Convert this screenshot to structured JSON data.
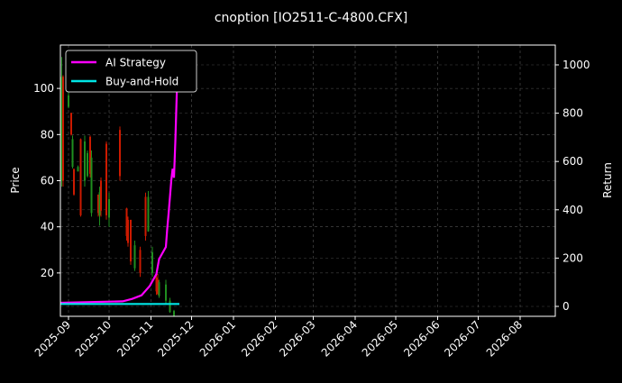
{
  "chart_data": {
    "type": "candlestick+line",
    "title": "cnoption [IO2511-C-4800.CFX]",
    "ylabel_left": "Price",
    "ylabel_right": "Return",
    "xlim": [
      "2025-08-26",
      "2026-08-27"
    ],
    "ylim_left": [
      1.2,
      118.8
    ],
    "ylim_right": [
      -41,
      1082
    ],
    "x_ticks": [
      "2025-09",
      "2025-10",
      "2025-11",
      "2025-12",
      "2026-01",
      "2026-02",
      "2026-03",
      "2026-04",
      "2026-05",
      "2026-06",
      "2026-07",
      "2026-08"
    ],
    "y_ticks_left": [
      20,
      40,
      60,
      80,
      100
    ],
    "y_ticks_right": [
      0,
      200,
      400,
      600,
      800,
      1000
    ],
    "grid": true,
    "legend_placement": "upper-left",
    "colors": {
      "up": "#1f8f1f",
      "down": "#cc1a00",
      "strategy": "#ff00ff",
      "buyhold": "#00e5e5",
      "background": "#000000",
      "grid": "#555555"
    },
    "candles": [
      [
        "2025-08-27",
        60,
        113.6,
        57.4,
        105
      ],
      [
        "2025-08-28",
        105,
        105.7,
        57.4,
        60
      ],
      [
        "2025-09-01",
        92,
        99.2,
        91.4,
        97
      ],
      [
        "2025-09-03",
        89.4,
        89.4,
        79.6,
        80
      ],
      [
        "2025-09-04",
        66,
        79.6,
        65.3,
        78
      ],
      [
        "2025-09-05",
        65,
        65.3,
        53.5,
        54
      ],
      [
        "2025-09-08",
        64,
        66.6,
        64,
        66
      ],
      [
        "2025-09-10",
        78,
        78.3,
        44.4,
        45
      ],
      [
        "2025-09-13",
        60,
        79.6,
        57.4,
        77
      ],
      [
        "2025-09-15",
        62,
        73.1,
        61.4,
        72
      ],
      [
        "2025-09-17",
        79,
        79.6,
        61.4,
        63
      ],
      [
        "2025-09-18",
        46,
        73.1,
        44.4,
        70
      ],
      [
        "2025-09-23",
        54,
        53.5,
        44.4,
        46
      ],
      [
        "2025-09-24",
        45,
        57.4,
        40.5,
        55
      ],
      [
        "2025-09-25",
        60,
        61.4,
        44.4,
        47
      ],
      [
        "2025-09-29",
        76,
        77,
        43.1,
        45
      ],
      [
        "2025-10-01",
        44,
        54.8,
        40,
        52
      ],
      [
        "2025-10-09",
        82,
        83.5,
        60,
        62
      ],
      [
        "2025-10-14",
        48,
        48.3,
        34,
        36
      ],
      [
        "2025-10-15",
        43,
        44.4,
        31.4,
        33
      ],
      [
        "2025-10-17",
        43,
        43.1,
        23.5,
        25
      ],
      [
        "2025-10-20",
        22,
        34,
        20.9,
        32
      ],
      [
        "2025-10-24",
        30,
        31.4,
        18.3,
        20
      ],
      [
        "2025-10-28",
        53,
        54.8,
        34,
        36
      ],
      [
        "2025-10-30",
        38,
        55.5,
        37.9,
        53
      ],
      [
        "2025-11-02",
        20,
        31.4,
        18.3,
        29
      ],
      [
        "2025-11-05",
        18,
        19.6,
        10.5,
        12
      ],
      [
        "2025-11-06",
        17,
        19.6,
        10.5,
        11
      ],
      [
        "2025-11-07",
        10,
        17,
        9.2,
        16
      ],
      [
        "2025-11-12",
        8,
        17,
        6.6,
        15
      ],
      [
        "2025-11-15",
        3,
        9.2,
        2.7,
        8
      ],
      [
        "2025-11-18",
        1.4,
        4,
        1.4,
        3.5
      ]
    ],
    "series": [
      {
        "name": "AI Strategy",
        "axis": "right",
        "x": [
          "2025-08-26",
          "2025-10-11",
          "2025-10-18",
          "2025-10-25",
          "2025-10-31",
          "2025-11-05",
          "2025-11-07",
          "2025-11-12",
          "2025-11-13",
          "2025-11-14",
          "2025-11-16",
          "2025-11-17",
          "2025-11-18",
          "2025-11-19",
          "2025-11-20",
          "2025-11-21"
        ],
        "y": [
          15,
          21,
          31,
          46,
          84,
          134,
          196,
          246,
          321,
          383,
          521,
          570,
          533,
          683,
          870,
          1045
        ]
      },
      {
        "name": "Buy-and-Hold",
        "axis": "right",
        "x": [
          "2025-08-26",
          "2025-11-22"
        ],
        "y": [
          10,
          10
        ]
      }
    ]
  }
}
